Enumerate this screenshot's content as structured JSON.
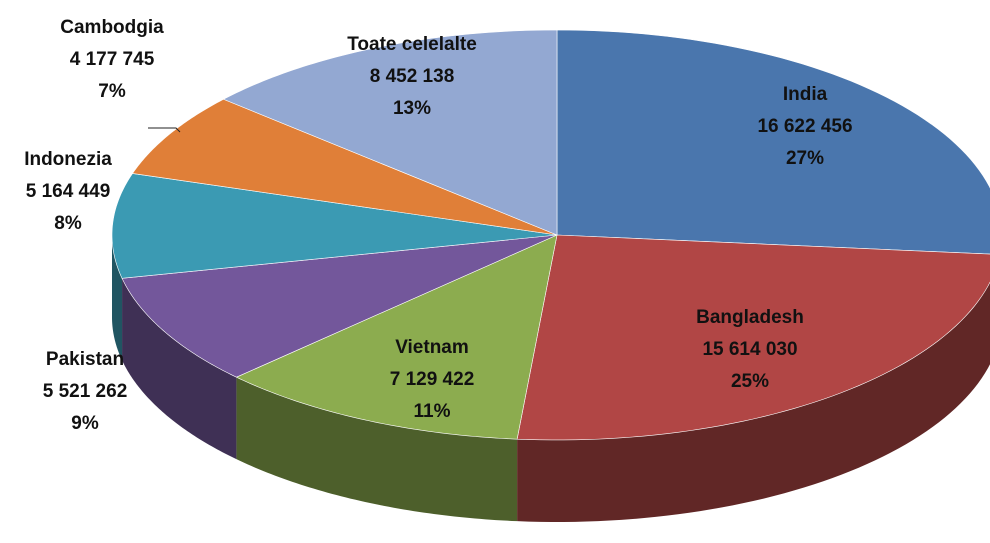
{
  "chart_data": {
    "type": "pie3d",
    "categories": [
      "India",
      "Bangladesh",
      "Vietnam",
      "Pakistan",
      "Indonezia",
      "Cambodgia",
      "Toate celelalte"
    ],
    "values": [
      16622456,
      15614030,
      7129422,
      5521262,
      5164449,
      4177745,
      8452138
    ],
    "value_labels": [
      "16 622 456",
      "15 614 030",
      "7 129 422",
      "5 521 262",
      "5 164 449",
      "4 177 745",
      "8 452 138"
    ],
    "shares": [
      27,
      25,
      11,
      9,
      8,
      7,
      13
    ],
    "share_labels": [
      "27%",
      "25%",
      "11%",
      "9%",
      "8%",
      "7%",
      "13%"
    ],
    "colors": [
      "#4a76ad",
      "#b14645",
      "#8cac4f",
      "#73579b",
      "#3b9ab3",
      "#e07f38",
      "#93a8d2"
    ]
  }
}
